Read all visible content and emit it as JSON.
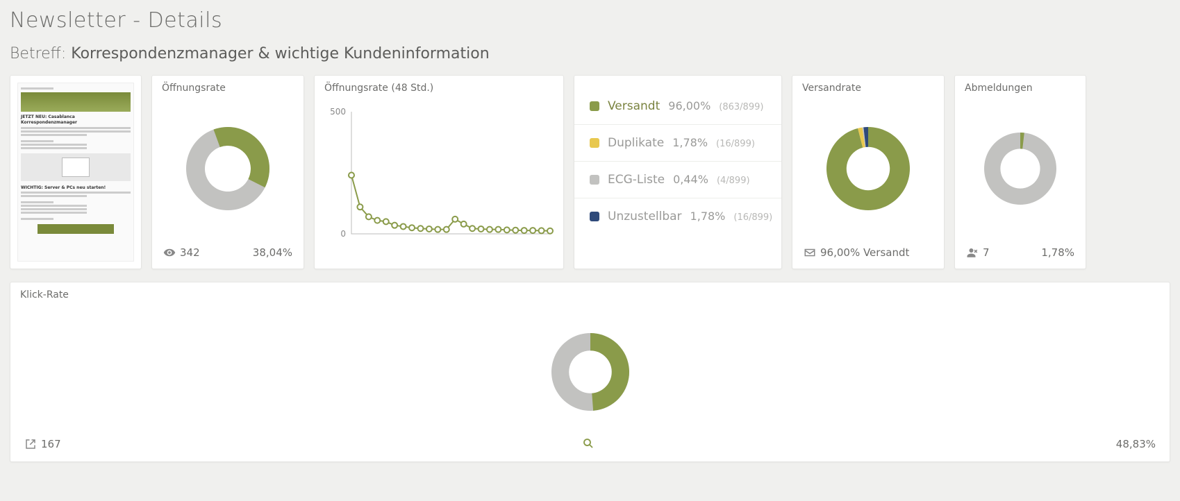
{
  "page": {
    "title": "Newsletter - Details"
  },
  "subject": {
    "label": "Betreff:",
    "text": "Korrespondenzmanager & wichtige Kundeninformation"
  },
  "colors": {
    "olive": "#8a9b4a",
    "grey": "#c2c2c0",
    "yellow": "#e8c84f",
    "navy": "#2f4a7a",
    "bg": "#f0f0ee",
    "card": "#ffffff"
  },
  "preview": {
    "headline1": "JETZT NEU: Casablanca Korrespondenzmanager",
    "headline2": "WICHTIG: Server & PCs neu starten!"
  },
  "open_rate": {
    "title": "Öffnungsrate",
    "type": "donut",
    "value_pct": 38.04,
    "views": 342,
    "pct_label": "38,04%",
    "colors": {
      "filled": "#8a9b4a",
      "rest": "#c2c2c0"
    },
    "inner_radius": 0.55,
    "start_angle_deg": -20
  },
  "open_rate_48h": {
    "title": "Öffnungsrate (48 Std.)",
    "type": "line",
    "y_ticks": [
      0,
      500
    ],
    "ylim": [
      0,
      500
    ],
    "x_count": 24,
    "values": [
      240,
      110,
      70,
      55,
      50,
      35,
      30,
      25,
      22,
      20,
      18,
      18,
      60,
      40,
      22,
      20,
      18,
      18,
      16,
      15,
      14,
      14,
      13,
      12
    ],
    "line_color": "#8a9b4a",
    "marker_fill": "#ffffff",
    "marker_stroke": "#8a9b4a",
    "marker_radius": 4,
    "axis_color": "#bdbdbb"
  },
  "send_breakdown": {
    "total": 899,
    "items": [
      {
        "key": "versandt",
        "label": "Versandt",
        "pct": "96,00%",
        "count": "(863/899)",
        "color": "#8a9b4a",
        "label_color": "#7a8340"
      },
      {
        "key": "duplikate",
        "label": "Duplikate",
        "pct": "1,78%",
        "count": "(16/899)",
        "color": "#e8c84f",
        "label_color": "#9a9a98"
      },
      {
        "key": "ecg",
        "label": "ECG-Liste",
        "pct": "0,44%",
        "count": "(4/899)",
        "color": "#c2c2c0",
        "label_color": "#9a9a98"
      },
      {
        "key": "unzustellbar",
        "label": "Unzustellbar",
        "pct": "1,78%",
        "count": "(16/899)",
        "color": "#2f4a7a",
        "label_color": "#9a9a98"
      }
    ]
  },
  "send_rate": {
    "title": "Versandrate",
    "type": "donut",
    "segments": [
      {
        "pct": 96.0,
        "color": "#8a9b4a"
      },
      {
        "pct": 1.78,
        "color": "#e8c84f"
      },
      {
        "pct": 0.44,
        "color": "#c2c2c0"
      },
      {
        "pct": 1.78,
        "color": "#2f4a7a"
      }
    ],
    "inner_radius": 0.52,
    "footer_text": "96,00% Versandt"
  },
  "unsub": {
    "title": "Abmeldungen",
    "type": "donut",
    "value_pct": 1.78,
    "count": 7,
    "pct_label": "1,78%",
    "colors": {
      "filled": "#8a9b4a",
      "rest": "#c2c2c0"
    },
    "inner_radius": 0.55
  },
  "click_rate": {
    "title": "Klick-Rate",
    "type": "donut",
    "value_pct": 48.83,
    "count": 167,
    "pct_label": "48,83%",
    "colors": {
      "filled": "#8a9b4a",
      "rest": "#c2c2c0"
    },
    "inner_radius": 0.55
  }
}
